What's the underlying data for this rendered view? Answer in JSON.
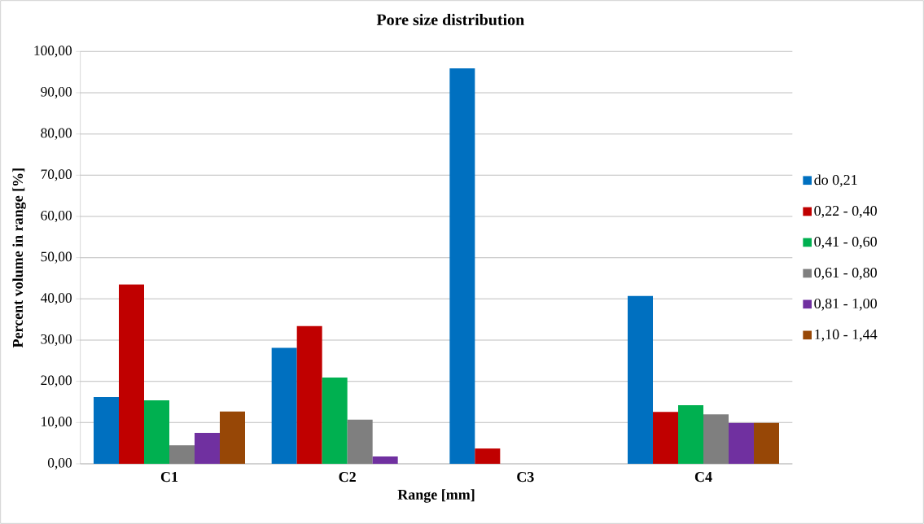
{
  "chart_data": {
    "type": "bar",
    "title": "Pore size distribution",
    "xlabel": "Range [mm]",
    "ylabel": "Percent volume in range [%]",
    "categories": [
      "C1",
      "C2",
      "C3",
      "C4"
    ],
    "series": [
      {
        "name": "do 0,21",
        "color": "#0070c0",
        "values": [
          16.2,
          28.1,
          95.9,
          40.7
        ]
      },
      {
        "name": "0,22 - 0,40",
        "color": "#c00000",
        "values": [
          43.5,
          33.4,
          3.7,
          12.6
        ]
      },
      {
        "name": "0,41 - 0,60",
        "color": "#00b050",
        "values": [
          15.4,
          20.9,
          0,
          14.2
        ]
      },
      {
        "name": "0,61 - 0,80",
        "color": "#7f7f7f",
        "values": [
          4.5,
          10.7,
          0,
          12.0
        ]
      },
      {
        "name": "0,81 - 1,00",
        "color": "#7030a0",
        "values": [
          7.5,
          1.8,
          0,
          9.9
        ]
      },
      {
        "name": "1,10 - 1,44",
        "color": "#974706",
        "values": [
          12.7,
          0,
          0,
          9.9
        ]
      }
    ],
    "ylim": [
      0,
      100
    ],
    "yticks": [
      {
        "value": 0,
        "label": "0,00"
      },
      {
        "value": 10,
        "label": "10,00"
      },
      {
        "value": 20,
        "label": "20,00"
      },
      {
        "value": 30,
        "label": "30,00"
      },
      {
        "value": 40,
        "label": "40,00"
      },
      {
        "value": 50,
        "label": "50,00"
      },
      {
        "value": 60,
        "label": "60,00"
      },
      {
        "value": 70,
        "label": "70,00"
      },
      {
        "value": 80,
        "label": "80,00"
      },
      {
        "value": 90,
        "label": "90,00"
      },
      {
        "value": 100,
        "label": "100,00"
      }
    ],
    "grid": "y",
    "legend": "right"
  }
}
